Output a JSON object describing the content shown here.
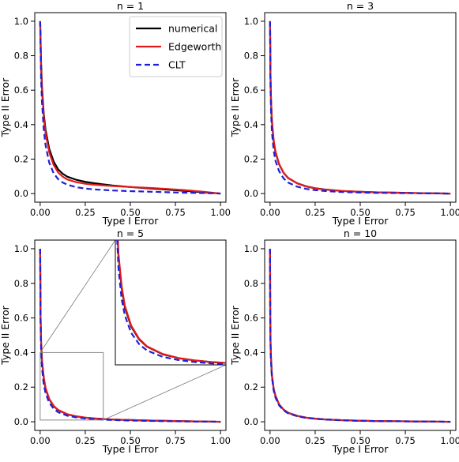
{
  "figure": {
    "legend": {
      "position": "top-right of first panel",
      "entries": [
        {
          "label": "numerical",
          "color": "#000000",
          "dash": "solid"
        },
        {
          "label": "Edgeworth",
          "color": "#e41a1c",
          "dash": "solid"
        },
        {
          "label": "CLT",
          "color": "#1f1fd6",
          "dash": "dashed"
        }
      ]
    }
  },
  "chart_data": [
    {
      "type": "line",
      "title": "n = 1",
      "xlabel": "Type I Error",
      "ylabel": "Type II Error",
      "xlim": [
        -0.03,
        1.03
      ],
      "ylim": [
        -0.05,
        1.05
      ],
      "xticks": [
        "0.00",
        "0.25",
        "0.50",
        "0.75",
        "1.00"
      ],
      "yticks": [
        "0.0",
        "0.2",
        "0.4",
        "0.6",
        "0.8",
        "1.0"
      ],
      "series": [
        {
          "name": "numerical",
          "color": "#000000",
          "dash": "solid",
          "x": [
            0,
            0.005,
            0.01,
            0.02,
            0.03,
            0.05,
            0.075,
            0.1,
            0.125,
            0.15,
            0.2,
            0.25,
            0.3,
            0.4,
            0.5,
            0.6,
            0.7,
            0.8,
            0.9,
            1.0
          ],
          "y": [
            1.0,
            0.76,
            0.62,
            0.46,
            0.37,
            0.26,
            0.185,
            0.14,
            0.115,
            0.098,
            0.08,
            0.068,
            0.06,
            0.047,
            0.038,
            0.03,
            0.023,
            0.016,
            0.008,
            0.0
          ]
        },
        {
          "name": "Edgeworth",
          "color": "#e41a1c",
          "dash": "solid",
          "x": [
            0,
            0.005,
            0.01,
            0.02,
            0.03,
            0.05,
            0.075,
            0.1,
            0.125,
            0.15,
            0.2,
            0.25,
            0.3,
            0.4,
            0.5,
            0.6,
            0.7,
            0.8,
            0.9,
            1.0
          ],
          "y": [
            1.0,
            0.73,
            0.6,
            0.44,
            0.35,
            0.24,
            0.165,
            0.122,
            0.098,
            0.082,
            0.066,
            0.057,
            0.051,
            0.044,
            0.038,
            0.033,
            0.027,
            0.02,
            0.011,
            0.0
          ]
        },
        {
          "name": "CLT",
          "color": "#1f1fd6",
          "dash": "dashed",
          "x": [
            0,
            0.005,
            0.01,
            0.02,
            0.03,
            0.05,
            0.075,
            0.1,
            0.125,
            0.15,
            0.2,
            0.25,
            0.3,
            0.4,
            0.5,
            0.6,
            0.7,
            0.8,
            0.9,
            1.0
          ],
          "y": [
            1.0,
            0.67,
            0.53,
            0.37,
            0.28,
            0.18,
            0.117,
            0.083,
            0.064,
            0.052,
            0.037,
            0.029,
            0.024,
            0.018,
            0.014,
            0.011,
            0.008,
            0.005,
            0.003,
            0.0
          ]
        }
      ]
    },
    {
      "type": "line",
      "title": "n = 3",
      "xlabel": "Type I Error",
      "ylabel": "Type II Error",
      "xlim": [
        -0.03,
        1.03
      ],
      "ylim": [
        -0.05,
        1.05
      ],
      "xticks": [
        "0.00",
        "0.25",
        "0.50",
        "0.75",
        "1.00"
      ],
      "yticks": [
        "0.0",
        "0.2",
        "0.4",
        "0.6",
        "0.8",
        "1.0"
      ],
      "series": [
        {
          "name": "numerical",
          "color": "#000000",
          "dash": "solid",
          "x": [
            0,
            0.002,
            0.005,
            0.01,
            0.02,
            0.03,
            0.05,
            0.075,
            0.1,
            0.15,
            0.2,
            0.25,
            0.3,
            0.4,
            0.5,
            0.6,
            0.8,
            1.0
          ],
          "y": [
            1.0,
            0.7,
            0.55,
            0.42,
            0.3,
            0.24,
            0.17,
            0.12,
            0.09,
            0.06,
            0.042,
            0.031,
            0.024,
            0.015,
            0.01,
            0.007,
            0.003,
            0.0
          ]
        },
        {
          "name": "Edgeworth",
          "color": "#e41a1c",
          "dash": "solid",
          "x": [
            0,
            0.002,
            0.005,
            0.01,
            0.02,
            0.03,
            0.05,
            0.075,
            0.1,
            0.15,
            0.2,
            0.25,
            0.3,
            0.4,
            0.5,
            0.6,
            0.8,
            1.0
          ],
          "y": [
            1.0,
            0.71,
            0.56,
            0.43,
            0.31,
            0.245,
            0.172,
            0.121,
            0.091,
            0.059,
            0.041,
            0.03,
            0.023,
            0.015,
            0.01,
            0.007,
            0.003,
            0.0
          ]
        },
        {
          "name": "CLT",
          "color": "#1f1fd6",
          "dash": "dashed",
          "x": [
            0,
            0.002,
            0.005,
            0.01,
            0.02,
            0.03,
            0.05,
            0.075,
            0.1,
            0.15,
            0.2,
            0.25,
            0.3,
            0.4,
            0.5,
            0.6,
            0.8,
            1.0
          ],
          "y": [
            1.0,
            0.64,
            0.49,
            0.36,
            0.25,
            0.19,
            0.13,
            0.088,
            0.064,
            0.04,
            0.027,
            0.02,
            0.015,
            0.009,
            0.006,
            0.004,
            0.002,
            0.0
          ]
        }
      ]
    },
    {
      "type": "line",
      "title": "n = 5",
      "xlabel": "Type I Error",
      "ylabel": "Type II Error",
      "xlim": [
        -0.03,
        1.03
      ],
      "ylim": [
        -0.05,
        1.05
      ],
      "xticks": [
        "0.00",
        "0.25",
        "0.50",
        "0.75",
        "1.00"
      ],
      "yticks": [
        "0.0",
        "0.2",
        "0.4",
        "0.6",
        "0.8",
        "1.0"
      ],
      "series": [
        {
          "name": "numerical",
          "color": "#000000",
          "dash": "solid",
          "x": [
            0,
            0.002,
            0.005,
            0.01,
            0.02,
            0.03,
            0.05,
            0.075,
            0.1,
            0.15,
            0.2,
            0.25,
            0.3,
            0.35,
            0.4,
            0.5,
            0.6,
            0.8,
            1.0
          ],
          "y": [
            1.0,
            0.62,
            0.46,
            0.35,
            0.25,
            0.19,
            0.13,
            0.09,
            0.067,
            0.043,
            0.031,
            0.024,
            0.019,
            0.016,
            0.013,
            0.01,
            0.007,
            0.003,
            0.0
          ]
        },
        {
          "name": "Edgeworth",
          "color": "#e41a1c",
          "dash": "solid",
          "x": [
            0,
            0.002,
            0.005,
            0.01,
            0.02,
            0.03,
            0.05,
            0.075,
            0.1,
            0.15,
            0.2,
            0.25,
            0.3,
            0.35,
            0.4,
            0.5,
            0.6,
            0.8,
            1.0
          ],
          "y": [
            1.0,
            0.63,
            0.47,
            0.355,
            0.255,
            0.195,
            0.133,
            0.092,
            0.068,
            0.044,
            0.031,
            0.024,
            0.019,
            0.016,
            0.013,
            0.01,
            0.007,
            0.003,
            0.0
          ]
        },
        {
          "name": "CLT",
          "color": "#1f1fd6",
          "dash": "dashed",
          "x": [
            0,
            0.002,
            0.005,
            0.01,
            0.02,
            0.03,
            0.05,
            0.075,
            0.1,
            0.15,
            0.2,
            0.25,
            0.3,
            0.35,
            0.4,
            0.5,
            0.6,
            0.8,
            1.0
          ],
          "y": [
            1.0,
            0.57,
            0.42,
            0.31,
            0.215,
            0.165,
            0.11,
            0.075,
            0.055,
            0.035,
            0.025,
            0.019,
            0.015,
            0.012,
            0.01,
            0.007,
            0.005,
            0.002,
            0.0
          ]
        }
      ],
      "inset": {
        "xlim": [
          0,
          0.35
        ],
        "ylim": [
          0.01,
          0.4
        ]
      }
    },
    {
      "type": "line",
      "title": "n = 10",
      "xlabel": "Type I Error",
      "ylabel": "Type II Error",
      "xlim": [
        -0.03,
        1.03
      ],
      "ylim": [
        -0.05,
        1.05
      ],
      "xticks": [
        "0.00",
        "0.25",
        "0.50",
        "0.75",
        "1.00"
      ],
      "yticks": [
        "0.0",
        "0.2",
        "0.4",
        "0.6",
        "0.8",
        "1.0"
      ],
      "series": [
        {
          "name": "numerical",
          "color": "#000000",
          "dash": "solid",
          "x": [
            0,
            0.001,
            0.003,
            0.005,
            0.01,
            0.02,
            0.03,
            0.05,
            0.075,
            0.1,
            0.15,
            0.2,
            0.25,
            0.3,
            0.4,
            0.5,
            0.6,
            0.8,
            1.0
          ],
          "y": [
            1.0,
            0.6,
            0.44,
            0.37,
            0.27,
            0.19,
            0.15,
            0.1,
            0.07,
            0.052,
            0.034,
            0.024,
            0.018,
            0.014,
            0.009,
            0.006,
            0.004,
            0.002,
            0.0
          ]
        },
        {
          "name": "Edgeworth",
          "color": "#e41a1c",
          "dash": "solid",
          "x": [
            0,
            0.001,
            0.003,
            0.005,
            0.01,
            0.02,
            0.03,
            0.05,
            0.075,
            0.1,
            0.15,
            0.2,
            0.25,
            0.3,
            0.4,
            0.5,
            0.6,
            0.8,
            1.0
          ],
          "y": [
            1.0,
            0.6,
            0.44,
            0.37,
            0.27,
            0.19,
            0.15,
            0.1,
            0.07,
            0.052,
            0.034,
            0.024,
            0.018,
            0.014,
            0.009,
            0.006,
            0.004,
            0.002,
            0.0
          ]
        },
        {
          "name": "CLT",
          "color": "#1f1fd6",
          "dash": "dashed",
          "x": [
            0,
            0.001,
            0.003,
            0.005,
            0.01,
            0.02,
            0.03,
            0.05,
            0.075,
            0.1,
            0.15,
            0.2,
            0.25,
            0.3,
            0.4,
            0.5,
            0.6,
            0.8,
            1.0
          ],
          "y": [
            1.0,
            0.59,
            0.43,
            0.36,
            0.26,
            0.18,
            0.14,
            0.095,
            0.066,
            0.049,
            0.032,
            0.022,
            0.017,
            0.013,
            0.008,
            0.005,
            0.004,
            0.002,
            0.0
          ]
        }
      ]
    }
  ]
}
